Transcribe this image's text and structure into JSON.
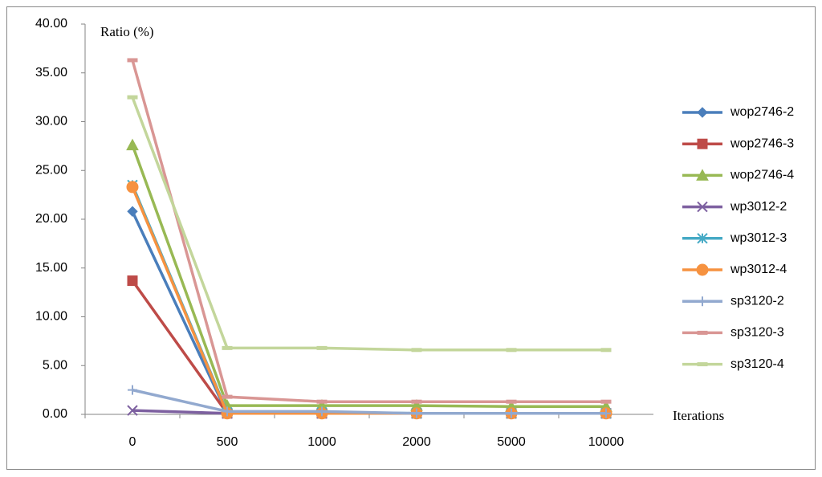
{
  "chart_data": {
    "type": "line",
    "y_label": "Ratio (%)",
    "x_label": "Iterations",
    "categories": [
      "0",
      "500",
      "1000",
      "2000",
      "5000",
      "10000"
    ],
    "ylim": [
      0,
      40
    ],
    "yticks": [
      {
        "value": 0,
        "label": "0.00"
      },
      {
        "value": 5,
        "label": "5.00"
      },
      {
        "value": 10,
        "label": "10.00"
      },
      {
        "value": 15,
        "label": "15.00"
      },
      {
        "value": 20,
        "label": "20.00"
      },
      {
        "value": 25,
        "label": "25.00"
      },
      {
        "value": 30,
        "label": "30.00"
      },
      {
        "value": 35,
        "label": "35.00"
      },
      {
        "value": 40,
        "label": "40.00"
      }
    ],
    "grid": false,
    "legend": "right",
    "series": [
      {
        "name": "wop2746-2",
        "color": "#4a7ebb",
        "marker": "diamond",
        "values": [
          20.8,
          0.1,
          0.1,
          0.1,
          0.1,
          0.1
        ]
      },
      {
        "name": "wop2746-3",
        "color": "#be4b48",
        "marker": "square",
        "values": [
          13.7,
          0.1,
          0.1,
          0.1,
          0.1,
          0.1
        ]
      },
      {
        "name": "wop2746-4",
        "color": "#98b954",
        "marker": "triangle",
        "values": [
          27.6,
          0.9,
          0.9,
          0.9,
          0.8,
          0.8
        ]
      },
      {
        "name": "wp3012-2",
        "color": "#7d60a0",
        "marker": "x",
        "values": [
          0.4,
          0.1,
          0.1,
          0.1,
          0.1,
          0.1
        ]
      },
      {
        "name": "wp3012-3",
        "color": "#46aac5",
        "marker": "star",
        "values": [
          23.5,
          0.2,
          0.2,
          0.1,
          0.1,
          0.1
        ]
      },
      {
        "name": "wp3012-4",
        "color": "#f69240",
        "marker": "circle",
        "values": [
          23.3,
          0.1,
          0.1,
          0.1,
          0.1,
          0.1
        ]
      },
      {
        "name": "sp3120-2",
        "color": "#92a9cf",
        "marker": "plus",
        "values": [
          2.5,
          0.3,
          0.3,
          0.1,
          0.1,
          0.1
        ]
      },
      {
        "name": "sp3120-3",
        "color": "#d99694",
        "marker": "dash",
        "values": [
          36.3,
          1.8,
          1.3,
          1.3,
          1.3,
          1.3
        ]
      },
      {
        "name": "sp3120-4",
        "color": "#c3d69b",
        "marker": "dash",
        "values": [
          32.5,
          6.8,
          6.8,
          6.6,
          6.6,
          6.6
        ]
      }
    ]
  }
}
